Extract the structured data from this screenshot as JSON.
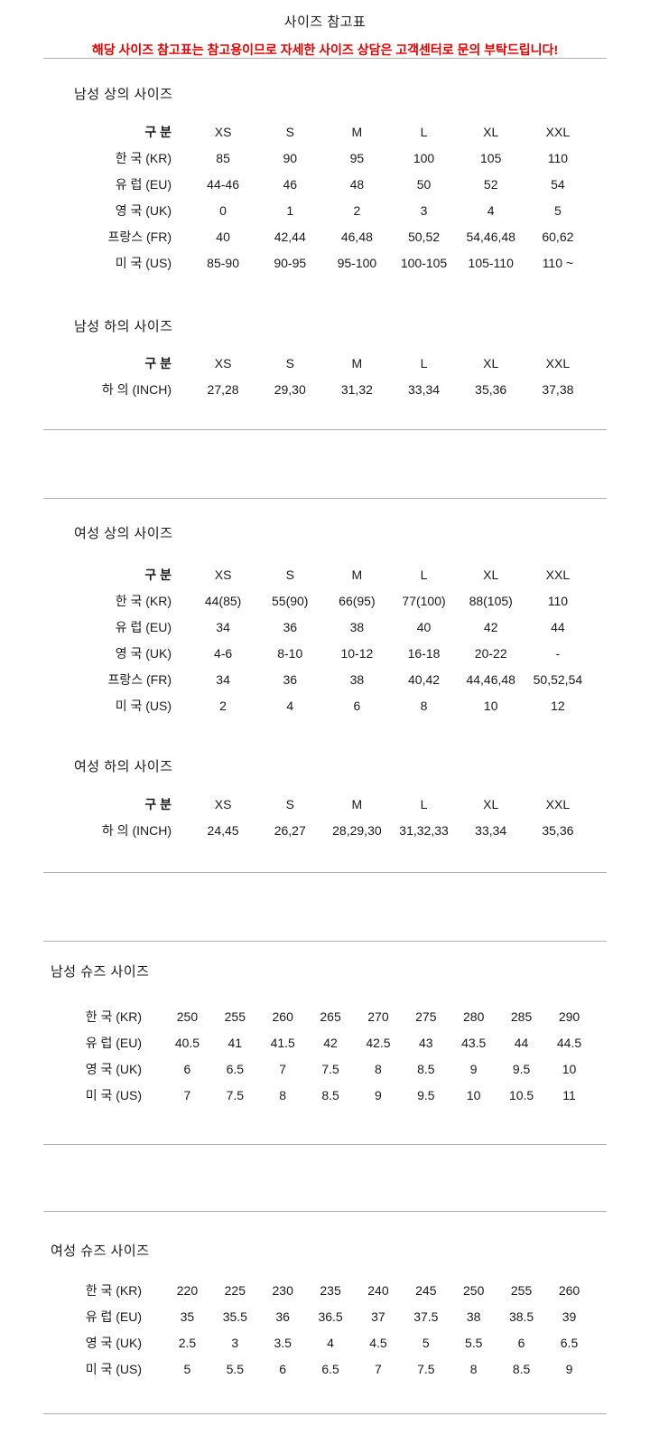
{
  "page": {
    "title": "사이즈 참고표",
    "notice": "해당 사이즈 참고표는 참고용이므로 자세한 사이즈 상담은 고객센터로 문의 부탁드립니다!"
  },
  "colors": {
    "notice_red": "#e60000",
    "divider_gray": "#b0b0b0",
    "text_black": "#1a1a1a"
  },
  "sections": {
    "mens_tops": {
      "heading": "남성 상의 사이즈",
      "kind": "clothing",
      "columns": [
        "구 분",
        "XS",
        "S",
        "M",
        "L",
        "XL",
        "XXL"
      ],
      "rows": [
        {
          "label": "한 국 (KR)",
          "values": [
            "85",
            "90",
            "95",
            "100",
            "105",
            "110"
          ]
        },
        {
          "label": "유 럽 (EU)",
          "values": [
            "44-46",
            "46",
            "48",
            "50",
            "52",
            "54"
          ]
        },
        {
          "label": "영 국 (UK)",
          "values": [
            "0",
            "1",
            "2",
            "3",
            "4",
            "5"
          ]
        },
        {
          "label": "프랑스 (FR)",
          "values": [
            "40",
            "42,44",
            "46,48",
            "50,52",
            "54,46,48",
            "60,62"
          ]
        },
        {
          "label": "미 국 (US)",
          "values": [
            "85-90",
            "90-95",
            "95-100",
            "100-105",
            "105-110",
            "110 ~"
          ]
        }
      ]
    },
    "mens_bottoms": {
      "heading": "남성 하의 사이즈",
      "kind": "clothing",
      "columns": [
        "구 분",
        "XS",
        "S",
        "M",
        "L",
        "XL",
        "XXL"
      ],
      "rows": [
        {
          "label": "하 의 (INCH)",
          "values": [
            "27,28",
            "29,30",
            "31,32",
            "33,34",
            "35,36",
            "37,38"
          ]
        }
      ]
    },
    "womens_tops": {
      "heading": "여성 상의 사이즈",
      "kind": "clothing",
      "columns": [
        "구 분",
        "XS",
        "S",
        "M",
        "L",
        "XL",
        "XXL"
      ],
      "rows": [
        {
          "label": "한 국 (KR)",
          "values": [
            "44(85)",
            "55(90)",
            "66(95)",
            "77(100)",
            "88(105)",
            "110"
          ]
        },
        {
          "label": "유 럽 (EU)",
          "values": [
            "34",
            "36",
            "38",
            "40",
            "42",
            "44"
          ]
        },
        {
          "label": "영 국 (UK)",
          "values": [
            "4-6",
            "8-10",
            "10-12",
            "16-18",
            "20-22",
            "-"
          ]
        },
        {
          "label": "프랑스 (FR)",
          "values": [
            "34",
            "36",
            "38",
            "40,42",
            "44,46,48",
            "50,52,54"
          ]
        },
        {
          "label": "미 국 (US)",
          "values": [
            "2",
            "4",
            "6",
            "8",
            "10",
            "12"
          ]
        }
      ]
    },
    "womens_bottoms": {
      "heading": "여성 하의 사이즈",
      "kind": "clothing",
      "columns": [
        "구 분",
        "XS",
        "S",
        "M",
        "L",
        "XL",
        "XXL"
      ],
      "rows": [
        {
          "label": "하 의 (INCH)",
          "values": [
            "24,45",
            "26,27",
            "28,29,30",
            "31,32,33",
            "33,34",
            "35,36"
          ]
        }
      ]
    },
    "mens_shoes": {
      "heading": "남성 슈즈 사이즈",
      "kind": "shoes",
      "rows": [
        {
          "label": "한 국 (KR)",
          "values": [
            "250",
            "255",
            "260",
            "265",
            "270",
            "275",
            "280",
            "285",
            "290"
          ]
        },
        {
          "label": "유 럽 (EU)",
          "values": [
            "40.5",
            "41",
            "41.5",
            "42",
            "42.5",
            "43",
            "43.5",
            "44",
            "44.5"
          ]
        },
        {
          "label": "영 국 (UK)",
          "values": [
            "6",
            "6.5",
            "7",
            "7.5",
            "8",
            "8.5",
            "9",
            "9.5",
            "10"
          ]
        },
        {
          "label": "미 국 (US)",
          "values": [
            "7",
            "7.5",
            "8",
            "8.5",
            "9",
            "9.5",
            "10",
            "10.5",
            "11"
          ]
        }
      ]
    },
    "womens_shoes": {
      "heading": "여성 슈즈 사이즈",
      "kind": "shoes",
      "rows": [
        {
          "label": "한 국 (KR)",
          "values": [
            "220",
            "225",
            "230",
            "235",
            "240",
            "245",
            "250",
            "255",
            "260"
          ]
        },
        {
          "label": "유 럽 (EU)",
          "values": [
            "35",
            "35.5",
            "36",
            "36.5",
            "37",
            "37.5",
            "38",
            "38.5",
            "39"
          ]
        },
        {
          "label": "영 국 (UK)",
          "values": [
            "2.5",
            "3",
            "3.5",
            "4",
            "4.5",
            "5",
            "5.5",
            "6",
            "6.5"
          ]
        },
        {
          "label": "미 국 (US)",
          "values": [
            "5",
            "5.5",
            "6",
            "6.5",
            "7",
            "7.5",
            "8",
            "8.5",
            "9"
          ]
        }
      ]
    }
  }
}
